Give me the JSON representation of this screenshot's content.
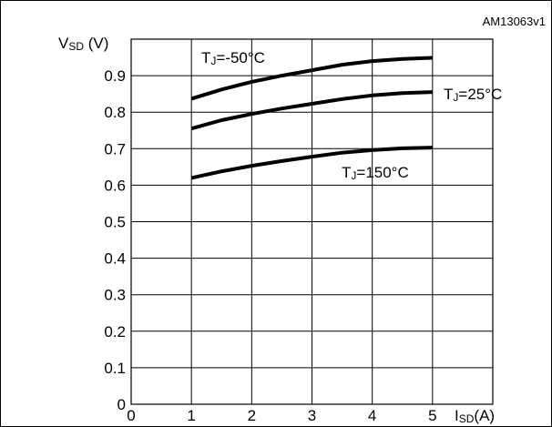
{
  "chart_data": {
    "type": "line",
    "reference_code": "AM13063v1",
    "ylabel": {
      "main": "V",
      "sub": "SD",
      "unit": " (V)"
    },
    "xlabel": {
      "main": "I",
      "sub": "SD",
      "unit": "(A)"
    },
    "xlim": [
      0,
      6
    ],
    "ylim": [
      0,
      1.0
    ],
    "x_ticks": [
      0,
      1,
      2,
      3,
      4,
      5
    ],
    "x_tick_labels": [
      "0",
      "1",
      "2",
      "3",
      "4",
      "5"
    ],
    "y_ticks": [
      0,
      0.1,
      0.2,
      0.3,
      0.4,
      0.5,
      0.6,
      0.7,
      0.8,
      0.9
    ],
    "y_tick_labels": [
      "0",
      "0.1",
      "0.2",
      "0.3",
      "0.4",
      "0.5",
      "0.6",
      "0.7",
      "0.8",
      "0.9"
    ],
    "grid": true,
    "series": [
      {
        "label_main": "T",
        "label_sub": "J",
        "label_rest": "=-50°C",
        "x": [
          1,
          1.5,
          2,
          2.5,
          3,
          3.5,
          4,
          4.5,
          5
        ],
        "y": [
          0.837,
          0.862,
          0.883,
          0.9,
          0.915,
          0.93,
          0.94,
          0.946,
          0.949
        ]
      },
      {
        "label_main": "T",
        "label_sub": "J",
        "label_rest": "=25°C",
        "x": [
          1,
          1.5,
          2,
          2.5,
          3,
          3.5,
          4,
          4.5,
          5
        ],
        "y": [
          0.755,
          0.778,
          0.795,
          0.81,
          0.823,
          0.836,
          0.846,
          0.852,
          0.855
        ]
      },
      {
        "label_main": "T",
        "label_sub": "J",
        "label_rest": "=150°C",
        "x": [
          1,
          1.5,
          2,
          2.5,
          3,
          3.5,
          4,
          4.5,
          5
        ],
        "y": [
          0.62,
          0.638,
          0.653,
          0.666,
          0.678,
          0.689,
          0.696,
          0.701,
          0.703
        ]
      }
    ]
  }
}
